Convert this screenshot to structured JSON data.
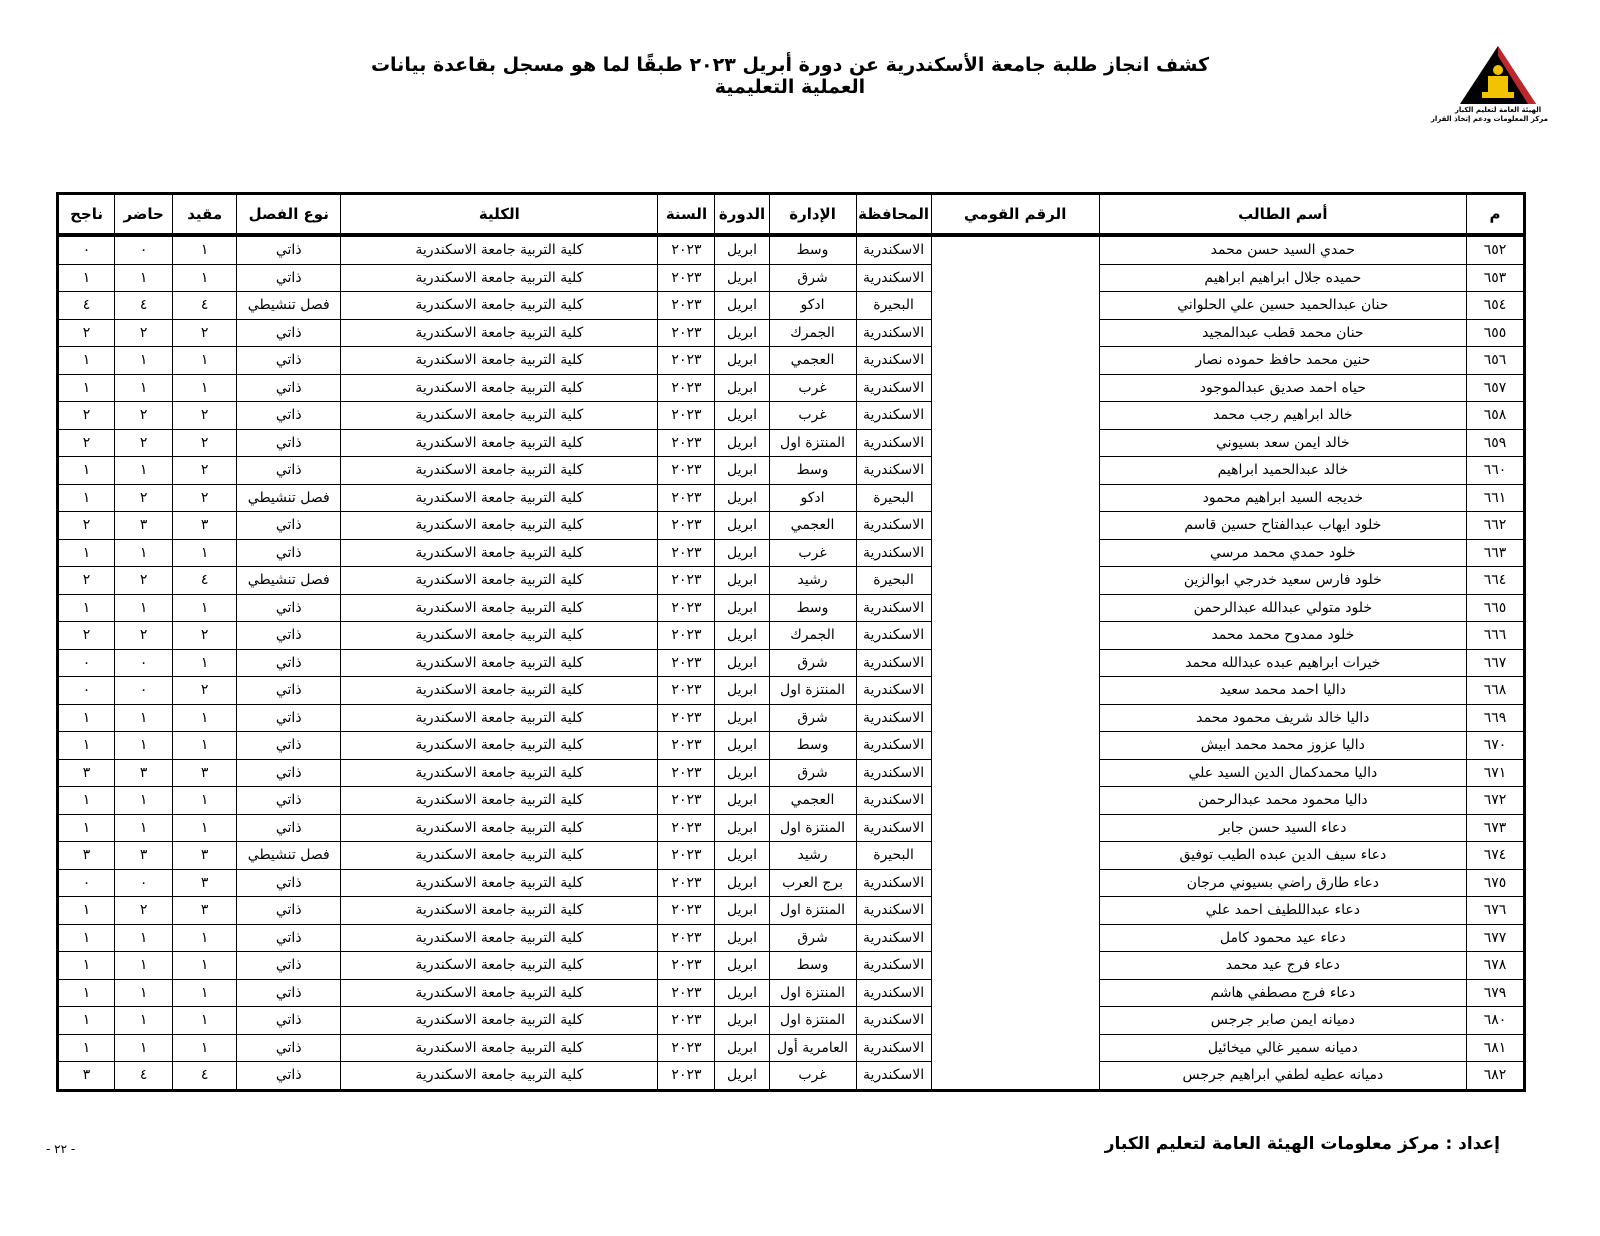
{
  "header": {
    "title": "كشف انجاز طلبة جامعة الأسكندرية عن دورة أبريل ٢٠٢٣ طبقًا لما هو مسجل بقاعدة بيانات العملية التعليمية",
    "logo_line1": "الهيئة العامة لتعليم الكبار",
    "logo_line2": "مركز المعلومات ودعم إتخاذ القرار"
  },
  "table": {
    "columns": [
      "م",
      "أسم الطالب",
      "الرقم القومي",
      "المحافظة",
      "الإدارة",
      "الدورة",
      "السنة",
      "الكلية",
      "نوع الفصل",
      "مقيد",
      "حاضر",
      "ناجح"
    ],
    "rows": [
      [
        "٦٥٢",
        "حمدي السيد حسن محمد",
        "",
        "الاسكندرية",
        "وسط",
        "ابريل",
        "٢٠٢٣",
        "كلية التربية جامعة الاسكندرية",
        "ذاتي",
        "١",
        "٠",
        "٠"
      ],
      [
        "٦٥٣",
        "حميده جلال ابراهيم ابراهيم",
        "",
        "الاسكندرية",
        "شرق",
        "ابريل",
        "٢٠٢٣",
        "كلية التربية جامعة الاسكندرية",
        "ذاتي",
        "١",
        "١",
        "١"
      ],
      [
        "٦٥٤",
        "حنان عبدالحميد حسين علي الحلواني",
        "",
        "البحيرة",
        "ادكو",
        "ابريل",
        "٢٠٢٣",
        "كلية التربية جامعة الاسكندرية",
        "فصل تنشيطي",
        "٤",
        "٤",
        "٤"
      ],
      [
        "٦٥٥",
        "حنان محمد قطب عبدالمجيد",
        "",
        "الاسكندرية",
        "الجمرك",
        "ابريل",
        "٢٠٢٣",
        "كلية التربية جامعة الاسكندرية",
        "ذاتي",
        "٢",
        "٢",
        "٢"
      ],
      [
        "٦٥٦",
        "حنين محمد حافظ حموده نصار",
        "",
        "الاسكندرية",
        "العجمي",
        "ابريل",
        "٢٠٢٣",
        "كلية التربية جامعة الاسكندرية",
        "ذاتي",
        "١",
        "١",
        "١"
      ],
      [
        "٦٥٧",
        "حياه احمد صديق عبدالموجود",
        "",
        "الاسكندرية",
        "غرب",
        "ابريل",
        "٢٠٢٣",
        "كلية التربية جامعة الاسكندرية",
        "ذاتي",
        "١",
        "١",
        "١"
      ],
      [
        "٦٥٨",
        "خالد ابراهيم رجب محمد",
        "",
        "الاسكندرية",
        "غرب",
        "ابريل",
        "٢٠٢٣",
        "كلية التربية جامعة الاسكندرية",
        "ذاتي",
        "٢",
        "٢",
        "٢"
      ],
      [
        "٦٥٩",
        "خالد ايمن سعد بسيوني",
        "",
        "الاسكندرية",
        "المنتزة اول",
        "ابريل",
        "٢٠٢٣",
        "كلية التربية جامعة الاسكندرية",
        "ذاتي",
        "٢",
        "٢",
        "٢"
      ],
      [
        "٦٦٠",
        "خالد عبدالحميد ابراهيم",
        "",
        "الاسكندرية",
        "وسط",
        "ابريل",
        "٢٠٢٣",
        "كلية التربية جامعة الاسكندرية",
        "ذاتي",
        "٢",
        "١",
        "١"
      ],
      [
        "٦٦١",
        "خديجه السيد ابراهيم محمود",
        "",
        "البحيرة",
        "ادكو",
        "ابريل",
        "٢٠٢٣",
        "كلية التربية جامعة الاسكندرية",
        "فصل تنشيطي",
        "٢",
        "٢",
        "١"
      ],
      [
        "٦٦٢",
        "خلود ايهاب عبدالفتاح حسين قاسم",
        "",
        "الاسكندرية",
        "العجمي",
        "ابريل",
        "٢٠٢٣",
        "كلية التربية جامعة الاسكندرية",
        "ذاتي",
        "٣",
        "٣",
        "٢"
      ],
      [
        "٦٦٣",
        "خلود حمدي محمد مرسي",
        "",
        "الاسكندرية",
        "غرب",
        "ابريل",
        "٢٠٢٣",
        "كلية التربية جامعة الاسكندرية",
        "ذاتي",
        "١",
        "١",
        "١"
      ],
      [
        "٦٦٤",
        "خلود فارس سعيد خدرجي ابوالزين",
        "",
        "البحيرة",
        "رشيد",
        "ابريل",
        "٢٠٢٣",
        "كلية التربية جامعة الاسكندرية",
        "فصل تنشيطي",
        "٤",
        "٢",
        "٢"
      ],
      [
        "٦٦٥",
        "خلود متولي عبدالله عبدالرحمن",
        "",
        "الاسكندرية",
        "وسط",
        "ابريل",
        "٢٠٢٣",
        "كلية التربية جامعة الاسكندرية",
        "ذاتي",
        "١",
        "١",
        "١"
      ],
      [
        "٦٦٦",
        "خلود ممدوح محمد محمد",
        "",
        "الاسكندرية",
        "الجمرك",
        "ابريل",
        "٢٠٢٣",
        "كلية التربية جامعة الاسكندرية",
        "ذاتي",
        "٢",
        "٢",
        "٢"
      ],
      [
        "٦٦٧",
        "خيرات ابراهيم عبده عبدالله محمد",
        "",
        "الاسكندرية",
        "شرق",
        "ابريل",
        "٢٠٢٣",
        "كلية التربية جامعة الاسكندرية",
        "ذاتي",
        "١",
        "٠",
        "٠"
      ],
      [
        "٦٦٨",
        "داليا احمد محمد سعيد",
        "",
        "الاسكندرية",
        "المنتزة اول",
        "ابريل",
        "٢٠٢٣",
        "كلية التربية جامعة الاسكندرية",
        "ذاتي",
        "٢",
        "٠",
        "٠"
      ],
      [
        "٦٦٩",
        "داليا خالد شريف محمود محمد",
        "",
        "الاسكندرية",
        "شرق",
        "ابريل",
        "٢٠٢٣",
        "كلية التربية جامعة الاسكندرية",
        "ذاتي",
        "١",
        "١",
        "١"
      ],
      [
        "٦٧٠",
        "داليا عزوز محمد محمد ابيش",
        "",
        "الاسكندرية",
        "وسط",
        "ابريل",
        "٢٠٢٣",
        "كلية التربية جامعة الاسكندرية",
        "ذاتي",
        "١",
        "١",
        "١"
      ],
      [
        "٦٧١",
        "داليا محمدكمال الدين السيد علي",
        "",
        "الاسكندرية",
        "شرق",
        "ابريل",
        "٢٠٢٣",
        "كلية التربية جامعة الاسكندرية",
        "ذاتي",
        "٣",
        "٣",
        "٣"
      ],
      [
        "٦٧٢",
        "داليا محمود محمد عبدالرحمن",
        "",
        "الاسكندرية",
        "العجمي",
        "ابريل",
        "٢٠٢٣",
        "كلية التربية جامعة الاسكندرية",
        "ذاتي",
        "١",
        "١",
        "١"
      ],
      [
        "٦٧٣",
        "دعاء السيد حسن جابر",
        "",
        "الاسكندرية",
        "المنتزة اول",
        "ابريل",
        "٢٠٢٣",
        "كلية التربية جامعة الاسكندرية",
        "ذاتي",
        "١",
        "١",
        "١"
      ],
      [
        "٦٧٤",
        "دعاء سيف الدين عبده الطيب توفيق",
        "",
        "البحيرة",
        "رشيد",
        "ابريل",
        "٢٠٢٣",
        "كلية التربية جامعة الاسكندرية",
        "فصل تنشيطي",
        "٣",
        "٣",
        "٣"
      ],
      [
        "٦٧٥",
        "دعاء طارق راضي بسيوني مرجان",
        "",
        "الاسكندرية",
        "برج العرب",
        "ابريل",
        "٢٠٢٣",
        "كلية التربية جامعة الاسكندرية",
        "ذاتي",
        "٣",
        "٠",
        "٠"
      ],
      [
        "٦٧٦",
        "دعاء عبداللطيف احمد علي",
        "",
        "الاسكندرية",
        "المنتزة اول",
        "ابريل",
        "٢٠٢٣",
        "كلية التربية جامعة الاسكندرية",
        "ذاتي",
        "٣",
        "٢",
        "١"
      ],
      [
        "٦٧٧",
        "دعاء عيد محمود كامل",
        "",
        "الاسكندرية",
        "شرق",
        "ابريل",
        "٢٠٢٣",
        "كلية التربية جامعة الاسكندرية",
        "ذاتي",
        "١",
        "١",
        "١"
      ],
      [
        "٦٧٨",
        "دعاء فرج عيد محمد",
        "",
        "الاسكندرية",
        "وسط",
        "ابريل",
        "٢٠٢٣",
        "كلية التربية جامعة الاسكندرية",
        "ذاتي",
        "١",
        "١",
        "١"
      ],
      [
        "٦٧٩",
        "دعاء فرج مصطفي هاشم",
        "",
        "الاسكندرية",
        "المنتزة اول",
        "ابريل",
        "٢٠٢٣",
        "كلية التربية جامعة الاسكندرية",
        "ذاتي",
        "١",
        "١",
        "١"
      ],
      [
        "٦٨٠",
        "دميانه ايمن صابر جرجس",
        "",
        "الاسكندرية",
        "المنتزة اول",
        "ابريل",
        "٢٠٢٣",
        "كلية التربية جامعة الاسكندرية",
        "ذاتي",
        "١",
        "١",
        "١"
      ],
      [
        "٦٨١",
        "دميانه سمير غالي ميخائيل",
        "",
        "الاسكندرية",
        "العامرية أول",
        "ابريل",
        "٢٠٢٣",
        "كلية التربية جامعة الاسكندرية",
        "ذاتي",
        "١",
        "١",
        "١"
      ],
      [
        "٦٨٢",
        "دميانه عطيه لطفي ابراهيم جرجس",
        "",
        "الاسكندرية",
        "غرب",
        "ابريل",
        "٢٠٢٣",
        "كلية التربية جامعة الاسكندرية",
        "ذاتي",
        "٤",
        "٤",
        "٣"
      ]
    ]
  },
  "footer": {
    "prepared_by": "إعداد : مركز معلومات الهيئة العامة لتعليم الكبار",
    "page_number": "- ٢٢ -"
  },
  "colors": {
    "logo_red": "#c0272d",
    "logo_yellow": "#f2c300",
    "ink": "#000000"
  }
}
